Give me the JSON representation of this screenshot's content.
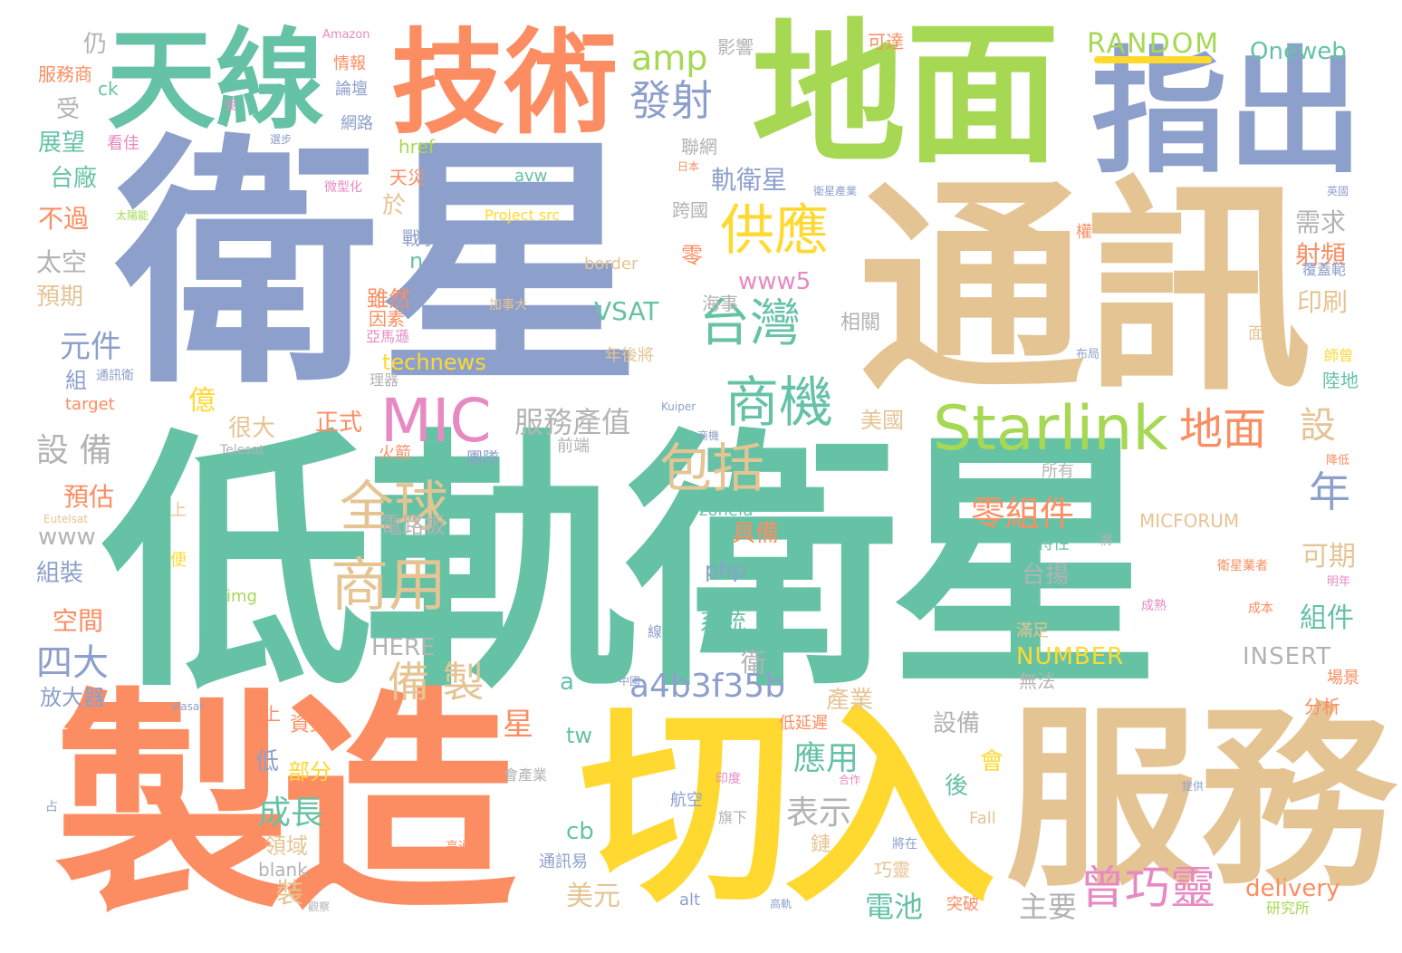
{
  "palette": {
    "teal": "#66c2a5",
    "orange": "#fc8d62",
    "blue": "#8da0cb",
    "pink": "#e78ac3",
    "green": "#a6d854",
    "yellow": "#ffd92f",
    "tan": "#e5c494",
    "gray": "#b3b3b3"
  },
  "words": [
    "衛星",
    "低軌衛星",
    "通訊",
    "製造",
    "服務",
    "切入",
    "地面",
    "指出",
    "技術",
    "天線",
    "Starlink",
    "MIC",
    "商機",
    "發射",
    "台灣",
    "供應",
    "包括",
    "全球",
    "商用",
    "曾巧靈",
    "地面",
    "年",
    "設",
    "設 備",
    "備 製",
    "amp",
    "RANDOM",
    "Oneweb",
    "軌衛星",
    "服務產值",
    "零組件",
    "a4b3f35b",
    "www5",
    "VSAT",
    "technews",
    "表示",
    "成長",
    "應用",
    "電池",
    "delivery",
    "主要",
    "美元",
    "星",
    "四大",
    "元件",
    "展望",
    "台廠",
    "不過",
    "太空",
    "預期",
    "受",
    "仍",
    "服務商",
    "情報",
    "論壇",
    "網路",
    "影響",
    "可達",
    "ck",
    "看佳",
    "href",
    "avw",
    "Project src",
    "border",
    "加事大",
    "需求",
    "射頻",
    "印刷",
    "相關",
    "美國",
    "很大",
    "億",
    "正式",
    "雖然",
    "因素",
    "亞馬遜",
    "戰爭",
    "n",
    "於",
    "天災",
    "跨國",
    "聯網",
    "零",
    "海事",
    "組件",
    "可期",
    "台揚",
    "電路板",
    "具備",
    "系統",
    "php",
    "zoneid",
    "MICFORUM",
    "NUMBER",
    "INSERT",
    "HERE",
    "a",
    "衛",
    "產業",
    "設備",
    "會",
    "後",
    "低",
    "部分",
    "資策",
    "浮上",
    "領域",
    "裝",
    "鏈",
    "巧靈",
    "tw",
    "cb",
    "alt",
    "blank",
    "www",
    "組裝",
    "空間",
    "放大器",
    "預估",
    "target",
    "img",
    "Telesat",
    "Eutelsat",
    "Viasat",
    "Kuiper",
    "Amazon",
    "Fall",
    "分析",
    "場景",
    "陸地",
    "師曾",
    "覆蓋範",
    "特性",
    "所有",
    "滿足",
    "無法",
    "成本",
    "成熟",
    "明年",
    "降低",
    "布局",
    "年後將",
    "火箭",
    "前端",
    "團隊",
    "中國",
    "航空",
    "旗下",
    "低延遲",
    "印度",
    "合作",
    "高軌",
    "突破",
    "研究所",
    "高通量",
    "通訊易",
    "會產業",
    "將在",
    "英國",
    "日本",
    "衛星產業",
    "微型化",
    "太陽能",
    "選步",
    "通訊衛",
    "理器",
    "組",
    "上",
    "便",
    "線",
    "面",
    "權",
    "商機",
    "受",
    "衛星業者",
    "將",
    "觀察",
    "占",
    "提供"
  ]
}
